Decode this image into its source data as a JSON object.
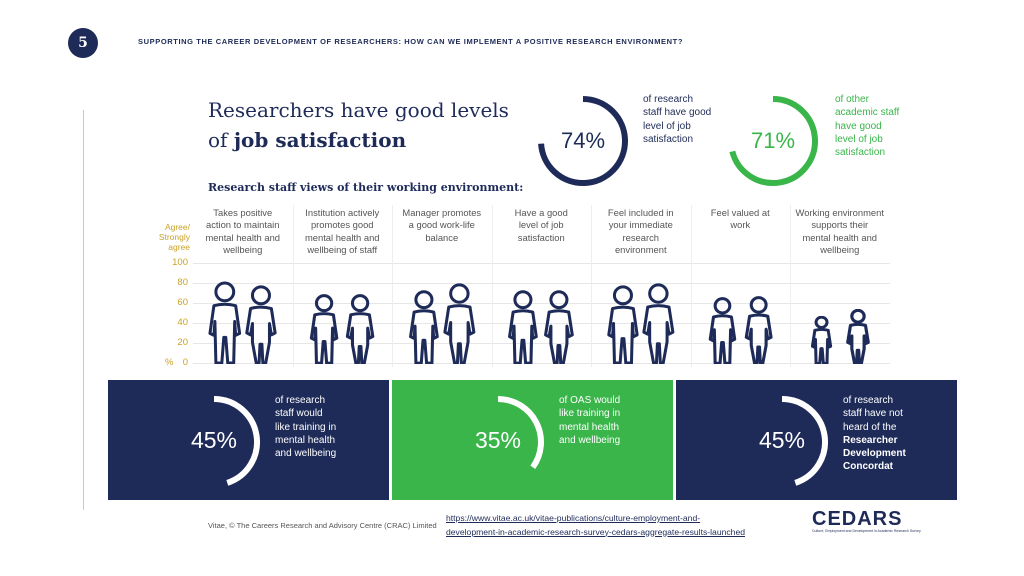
{
  "slide_number": "5",
  "slide_title": "SUPPORTING THE CAREER DEVELOPMENT OF RESEARCHERS: HOW CAN WE IMPLEMENT A POSITIVE RESEARCH ENVIRONMENT?",
  "headline": {
    "line1": "Researchers have good levels",
    "line2_prefix": "of ",
    "line2_bold": "job satisfaction"
  },
  "stats": [
    {
      "value": "74%",
      "fraction": 0.74,
      "color": "#1e2b58",
      "lines": [
        "of research",
        "staff have good",
        "level of job",
        "satisfaction"
      ]
    },
    {
      "value": "71%",
      "fraction": 0.71,
      "color": "#3ab54a",
      "lines": [
        "of other",
        "academic staff",
        "have good",
        "level of job",
        "satisfaction"
      ]
    }
  ],
  "chart_data": {
    "type": "pictogram-bar",
    "title": "Research staff views of their working environment:",
    "ylabel": "Agree/ Strongly agree",
    "yunit": "%",
    "ylim": [
      0,
      100
    ],
    "yticks": [
      "100",
      "80",
      "60",
      "40",
      "20",
      "0"
    ],
    "categories": [
      {
        "lines": [
          "Takes positive",
          "action to maintain",
          "mental health and",
          "wellbeing"
        ]
      },
      {
        "lines": [
          "Institution actively",
          "promotes good",
          "mental health and",
          "wellbeing of staff"
        ]
      },
      {
        "lines": [
          "Manager promotes",
          "a good work-life",
          "balance"
        ]
      },
      {
        "lines": [
          "Have a good",
          "level of job",
          "satisfaction"
        ]
      },
      {
        "lines": [
          "Feel included in",
          "your immediate",
          "research",
          "environment"
        ]
      },
      {
        "lines": [
          "Feel valued at",
          "work"
        ]
      },
      {
        "lines": [
          "Working environment",
          "supports their",
          "mental health and",
          "wellbeing"
        ]
      }
    ],
    "series": [
      {
        "values": [
          81,
          68,
          72,
          72,
          77,
          65,
          46
        ]
      },
      {
        "values": [
          77,
          68,
          79,
          72,
          79,
          66,
          53
        ]
      }
    ]
  },
  "panels": [
    {
      "value": "45%",
      "fraction": 0.45,
      "bg": "#1e2b58",
      "lines": [
        "of research",
        "staff would",
        "like training in",
        "mental health",
        "and wellbeing"
      ],
      "bold_from": 99
    },
    {
      "value": "35%",
      "fraction": 0.35,
      "bg": "#3ab54a",
      "lines": [
        "of OAS  would",
        "like training in",
        "mental health",
        "and wellbeing"
      ],
      "bold_from": 99
    },
    {
      "value": "45%",
      "fraction": 0.45,
      "bg": "#1e2b58",
      "lines": [
        "of research",
        "staff have not",
        "heard of the",
        "Researcher",
        "Development",
        "Concordat"
      ],
      "bold_from": 3
    }
  ],
  "footer": {
    "copyright": "Vitae, © The Careers Research and Advisory Centre (CRAC) Limited",
    "url_line1": "https://www.vitae.ac.uk/vitae-publications/culture-employment-and-",
    "url_line2": "development-in-academic-research-survey-cedars-aggregate-results-launched",
    "logo": "CEDARS",
    "logo_sub": "Culture, Employment and Development in Academic Research Survey"
  }
}
